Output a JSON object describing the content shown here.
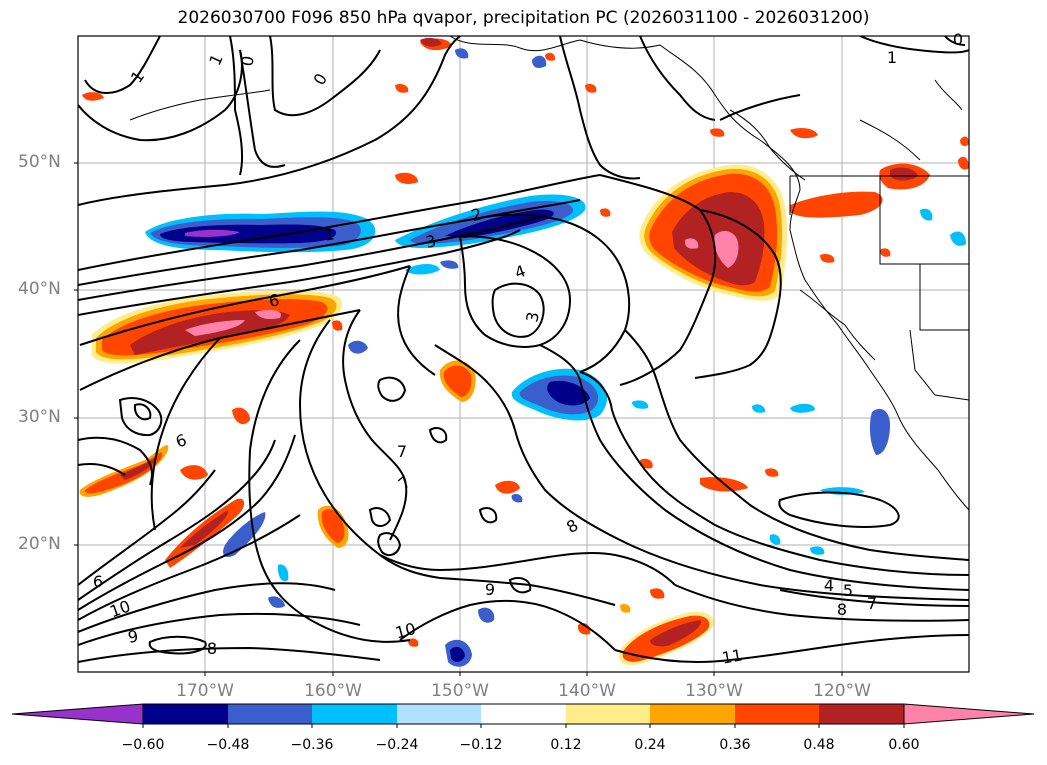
{
  "title": "2026030700 F096 850 hPa qvapor, precipitation PC (2026031100 - 2026031200)",
  "lat_labels": [
    "50°N",
    "40°N",
    "30°N",
    "20°N"
  ],
  "lon_labels": [
    "170°W",
    "160°W",
    "150°W",
    "140°W",
    "130°W",
    "120°W"
  ],
  "contour_labels": [
    "1",
    "1",
    "0",
    "0",
    "1",
    "0",
    "2",
    "1",
    "3",
    "4",
    "3",
    "6",
    "6",
    "7",
    "7",
    "8",
    "9",
    "10",
    "9",
    "8",
    "6",
    "10",
    "11",
    "4",
    "5",
    "8",
    "7"
  ],
  "colorbar": {
    "ticks": [
      "−0.60",
      "−0.48",
      "−0.36",
      "−0.24",
      "−0.12",
      "0.12",
      "0.24",
      "0.36",
      "0.48",
      "0.60"
    ],
    "colors": [
      "#9932cc",
      "#00008b",
      "#3a5fcd",
      "#00bfff",
      "#b0e2ff",
      "#ffffff",
      "#ffec8b",
      "#ffa500",
      "#ff4500",
      "#b22222",
      "#ff82ab"
    ]
  }
}
